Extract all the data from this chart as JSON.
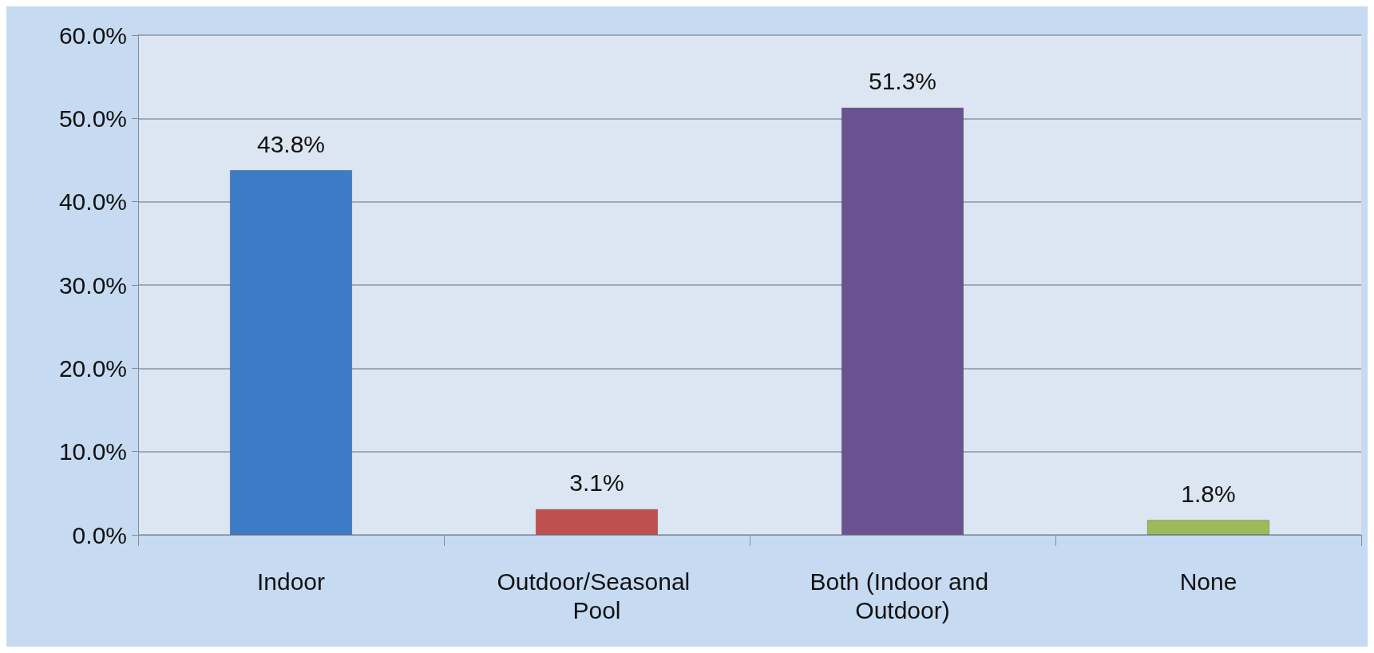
{
  "chart_data": {
    "type": "bar",
    "categories": [
      "Indoor",
      "Outdoor/Seasonal Pool",
      "Both (Indoor and Outdoor)",
      "None"
    ],
    "values": [
      43.8,
      3.1,
      51.3,
      1.8
    ],
    "colors": [
      "#3c7bc8",
      "#c0504d",
      "#6a5290",
      "#9bbb59"
    ],
    "value_labels": [
      "43.8%",
      "3.1%",
      "51.3%",
      "1.8%"
    ],
    "ylim": [
      0,
      60
    ],
    "yticks": [
      {
        "value": 0,
        "label": "0.0%"
      },
      {
        "value": 10,
        "label": "10.0%"
      },
      {
        "value": 20,
        "label": "20.0%"
      },
      {
        "value": 30,
        "label": "30.0%"
      },
      {
        "value": 40,
        "label": "40.0%"
      },
      {
        "value": 50,
        "label": "50.0%"
      },
      {
        "value": 60,
        "label": "60.0%"
      }
    ],
    "grid": "y"
  }
}
